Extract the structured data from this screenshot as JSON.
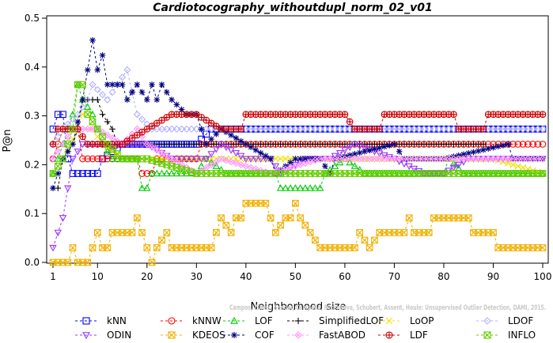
{
  "chart_data": {
    "type": "line",
    "title": "Cardiotocography_withoutdupl_norm_02_v01",
    "xlabel": "Neighborhood size",
    "ylabel": "P@n",
    "xlim": [
      1,
      100
    ],
    "ylim": [
      0,
      0.5
    ],
    "x_ticks": [
      "1",
      "10",
      "20",
      "30",
      "40",
      "50",
      "60",
      "70",
      "80",
      "90",
      "100"
    ],
    "y_ticks": [
      "0.0",
      "0.1",
      "0.2",
      "0.3",
      "0.4",
      "0.5"
    ],
    "grid": false,
    "legend_position": "bottom",
    "credit": "Campos, Zimek, Sander, Campello, Micenkova, Schubert, Assent, Houle: Unsupervised Outlier Detection, DAMI, 2015.",
    "series": [
      {
        "name": "kNN",
        "color": "#0000ff",
        "marker": "square",
        "points": [
          [
            1,
            0.273
          ],
          [
            2,
            0.303
          ],
          [
            3,
            0.303
          ],
          [
            4,
            0.212
          ],
          [
            5,
            0.182
          ],
          [
            10,
            0.182
          ],
          [
            11,
            0.212
          ],
          [
            15,
            0.242
          ],
          [
            30,
            0.242
          ],
          [
            33,
            0.273
          ],
          [
            100,
            0.273
          ]
        ]
      },
      {
        "name": "kNNW",
        "color": "#ff0000",
        "marker": "circle",
        "points": [
          [
            1,
            0.212
          ],
          [
            2,
            0.242
          ],
          [
            3,
            0.273
          ],
          [
            6,
            0.273
          ],
          [
            7,
            0.212
          ],
          [
            18,
            0.212
          ],
          [
            19,
            0.182
          ],
          [
            21,
            0.182
          ],
          [
            22,
            0.212
          ],
          [
            30,
            0.212
          ],
          [
            31,
            0.242
          ],
          [
            100,
            0.242
          ]
        ]
      },
      {
        "name": "LOF",
        "color": "#00cc00",
        "marker": "triangle",
        "points": [
          [
            1,
            0.182
          ],
          [
            3,
            0.242
          ],
          [
            5,
            0.303
          ],
          [
            6,
            0.364
          ],
          [
            7,
            0.333
          ],
          [
            9,
            0.303
          ],
          [
            11,
            0.242
          ],
          [
            13,
            0.212
          ],
          [
            18,
            0.212
          ],
          [
            19,
            0.152
          ],
          [
            20,
            0.152
          ],
          [
            21,
            0.182
          ],
          [
            30,
            0.182
          ],
          [
            32,
            0.212
          ],
          [
            36,
            0.182
          ],
          [
            46,
            0.182
          ],
          [
            47,
            0.152
          ],
          [
            55,
            0.152
          ],
          [
            56,
            0.182
          ],
          [
            60,
            0.212
          ],
          [
            64,
            0.182
          ],
          [
            80,
            0.182
          ],
          [
            81,
            0.212
          ],
          [
            84,
            0.182
          ],
          [
            100,
            0.182
          ]
        ]
      },
      {
        "name": "SimplifiedLOF",
        "color": "#000000",
        "marker": "plus",
        "points": [
          [
            1,
            0.152
          ],
          [
            2,
            0.152
          ],
          [
            3,
            0.212
          ],
          [
            5,
            0.242
          ],
          [
            6,
            0.273
          ],
          [
            7,
            0.333
          ],
          [
            10,
            0.333
          ],
          [
            11,
            0.303
          ],
          [
            13,
            0.273
          ],
          [
            14,
            0.242
          ],
          [
            20,
            0.242
          ],
          [
            30,
            0.242
          ],
          [
            40,
            0.242
          ],
          [
            60,
            0.242
          ],
          [
            70,
            0.242
          ],
          [
            88,
            0.242
          ]
        ]
      },
      {
        "name": "LoOP",
        "color": "#f0e000",
        "marker": "cross",
        "points": [
          [
            1,
            0.182
          ],
          [
            3,
            0.212
          ],
          [
            6,
            0.273
          ],
          [
            7,
            0.303
          ],
          [
            8,
            0.303
          ],
          [
            9,
            0.273
          ],
          [
            11,
            0.242
          ],
          [
            15,
            0.212
          ],
          [
            30,
            0.212
          ],
          [
            45,
            0.212
          ],
          [
            60,
            0.212
          ],
          [
            75,
            0.212
          ],
          [
            90,
            0.212
          ],
          [
            100,
            0.182
          ]
        ]
      },
      {
        "name": "LDOF",
        "color": "#b0b0ff",
        "marker": "diamond",
        "points": [
          [
            1,
            0.242
          ],
          [
            3,
            0.273
          ],
          [
            6,
            0.303
          ],
          [
            8,
            0.333
          ],
          [
            9,
            0.364
          ],
          [
            12,
            0.333
          ],
          [
            16,
            0.394
          ],
          [
            18,
            0.303
          ],
          [
            21,
            0.273
          ],
          [
            30,
            0.273
          ],
          [
            40,
            0.273
          ],
          [
            60,
            0.273
          ],
          [
            80,
            0.273
          ],
          [
            100,
            0.273
          ]
        ]
      },
      {
        "name": "ODIN",
        "color": "#9933ff",
        "marker": "triangle-down",
        "points": [
          [
            1,
            0.03
          ],
          [
            2,
            0.061
          ],
          [
            3,
            0.091
          ],
          [
            4,
            0.152
          ],
          [
            5,
            0.212
          ],
          [
            7,
            0.242
          ],
          [
            10,
            0.242
          ],
          [
            15,
            0.242
          ],
          [
            18,
            0.242
          ],
          [
            20,
            0.242
          ],
          [
            25,
            0.212
          ],
          [
            32,
            0.212
          ],
          [
            35,
            0.242
          ],
          [
            40,
            0.212
          ],
          [
            45,
            0.212
          ],
          [
            47,
            0.182
          ],
          [
            52,
            0.212
          ],
          [
            57,
            0.212
          ],
          [
            62,
            0.242
          ],
          [
            70,
            0.212
          ],
          [
            76,
            0.182
          ],
          [
            78,
            0.182
          ],
          [
            80,
            0.182
          ],
          [
            85,
            0.212
          ],
          [
            100,
            0.212
          ]
        ]
      },
      {
        "name": "KDEOS",
        "color": "#f0b000",
        "marker": "square-x",
        "points": [
          [
            1,
            0.0
          ],
          [
            3,
            0.0
          ],
          [
            4,
            0.0
          ],
          [
            5,
            0.03
          ],
          [
            6,
            0.0
          ],
          [
            8,
            0.0
          ],
          [
            9,
            0.03
          ],
          [
            10,
            0.061
          ],
          [
            11,
            0.03
          ],
          [
            12,
            0.03
          ],
          [
            13,
            0.061
          ],
          [
            17,
            0.061
          ],
          [
            18,
            0.091
          ],
          [
            19,
            0.061
          ],
          [
            20,
            0.03
          ],
          [
            21,
            0.0
          ],
          [
            22,
            0.03
          ],
          [
            24,
            0.061
          ],
          [
            25,
            0.03
          ],
          [
            33,
            0.03
          ],
          [
            34,
            0.061
          ],
          [
            35,
            0.091
          ],
          [
            37,
            0.061
          ],
          [
            38,
            0.091
          ],
          [
            39,
            0.091
          ],
          [
            40,
            0.121
          ],
          [
            44,
            0.121
          ],
          [
            45,
            0.091
          ],
          [
            46,
            0.061
          ],
          [
            48,
            0.091
          ],
          [
            49,
            0.091
          ],
          [
            50,
            0.121
          ],
          [
            51,
            0.091
          ],
          [
            53,
            0.061
          ],
          [
            55,
            0.03
          ],
          [
            62,
            0.03
          ],
          [
            63,
            0.061
          ],
          [
            65,
            0.03
          ],
          [
            67,
            0.061
          ],
          [
            72,
            0.061
          ],
          [
            73,
            0.091
          ],
          [
            74,
            0.061
          ],
          [
            77,
            0.061
          ],
          [
            78,
            0.091
          ],
          [
            85,
            0.091
          ],
          [
            86,
            0.061
          ],
          [
            89,
            0.061
          ],
          [
            90,
            0.061
          ],
          [
            91,
            0.03
          ],
          [
            100,
            0.03
          ]
        ]
      },
      {
        "name": "COF",
        "color": "#000080",
        "marker": "star",
        "points": [
          [
            1,
            0.152
          ],
          [
            3,
            0.212
          ],
          [
            5,
            0.242
          ],
          [
            7,
            0.333
          ],
          [
            8,
            0.394
          ],
          [
            9,
            0.455
          ],
          [
            10,
            0.394
          ],
          [
            11,
            0.424
          ],
          [
            12,
            0.364
          ],
          [
            15,
            0.364
          ],
          [
            16,
            0.333
          ],
          [
            18,
            0.364
          ],
          [
            20,
            0.333
          ],
          [
            21,
            0.364
          ],
          [
            22,
            0.333
          ],
          [
            23,
            0.364
          ],
          [
            25,
            0.333
          ],
          [
            28,
            0.303
          ],
          [
            30,
            0.303
          ],
          [
            32,
            0.242
          ],
          [
            35,
            0.273
          ],
          [
            40,
            0.242
          ],
          [
            45,
            0.212
          ],
          [
            46,
            0.182
          ],
          [
            50,
            0.212
          ],
          [
            55,
            0.212
          ],
          [
            57,
            0.182
          ],
          [
            58,
            0.212
          ],
          [
            70,
            0.242
          ],
          [
            72,
            0.212
          ],
          [
            80,
            0.212
          ],
          [
            93,
            0.242
          ],
          [
            94,
            0.212
          ],
          [
            100,
            0.212
          ]
        ]
      },
      {
        "name": "FastABOD",
        "color": "#ff99ff",
        "marker": "diamond-x",
        "points": [
          [
            1,
            0.212
          ],
          [
            3,
            0.242
          ],
          [
            5,
            0.273
          ],
          [
            8,
            0.273
          ],
          [
            10,
            0.273
          ],
          [
            15,
            0.242
          ],
          [
            18,
            0.273
          ],
          [
            20,
            0.242
          ],
          [
            25,
            0.212
          ],
          [
            30,
            0.182
          ],
          [
            35,
            0.212
          ],
          [
            45,
            0.182
          ],
          [
            55,
            0.212
          ],
          [
            65,
            0.212
          ],
          [
            80,
            0.212
          ],
          [
            100,
            0.212
          ]
        ]
      },
      {
        "name": "LDF",
        "color": "#cc0000",
        "marker": "circle-plus",
        "points": [
          [
            1,
            0.242
          ],
          [
            2,
            0.273
          ],
          [
            6,
            0.273
          ],
          [
            8,
            0.242
          ],
          [
            10,
            0.242
          ],
          [
            15,
            0.242
          ],
          [
            20,
            0.273
          ],
          [
            25,
            0.303
          ],
          [
            30,
            0.303
          ],
          [
            35,
            0.273
          ],
          [
            39,
            0.273
          ],
          [
            40,
            0.303
          ],
          [
            60,
            0.303
          ],
          [
            62,
            0.273
          ],
          [
            67,
            0.273
          ],
          [
            68,
            0.303
          ],
          [
            82,
            0.303
          ],
          [
            83,
            0.273
          ],
          [
            88,
            0.273
          ],
          [
            89,
            0.303
          ],
          [
            100,
            0.303
          ]
        ]
      },
      {
        "name": "INFLO",
        "color": "#66cc00",
        "marker": "square-x",
        "points": [
          [
            1,
            0.182
          ],
          [
            3,
            0.212
          ],
          [
            5,
            0.273
          ],
          [
            6,
            0.364
          ],
          [
            7,
            0.364
          ],
          [
            8,
            0.303
          ],
          [
            10,
            0.273
          ],
          [
            12,
            0.242
          ],
          [
            15,
            0.212
          ],
          [
            20,
            0.212
          ],
          [
            30,
            0.182
          ],
          [
            40,
            0.182
          ],
          [
            50,
            0.182
          ],
          [
            60,
            0.182
          ],
          [
            70,
            0.182
          ],
          [
            80,
            0.182
          ],
          [
            90,
            0.182
          ],
          [
            100,
            0.182
          ]
        ]
      }
    ]
  }
}
